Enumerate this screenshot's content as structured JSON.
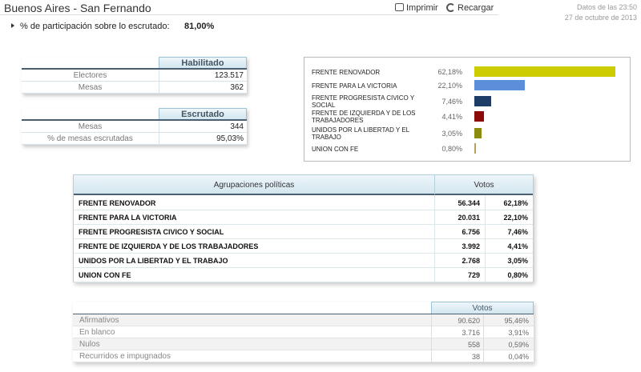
{
  "header": {
    "title": "Buenos Aires - San Fernando",
    "actions": [
      "Imprimir",
      "Recargar"
    ],
    "updated_time": "Datos de las 23:50",
    "updated_date": "27 de octubre de 2013"
  },
  "participation": {
    "label": "% de participación sobre lo escrutado:",
    "value": "81,00%"
  },
  "enabled_table": {
    "header": "Habilitado",
    "rows": [
      [
        "Electores",
        "123.517"
      ],
      [
        "Mesas",
        "362"
      ]
    ]
  },
  "counted_table": {
    "header": "Escrutado",
    "rows": [
      [
        "Mesas",
        "344"
      ],
      [
        "% de mesas escrutadas",
        "95,03%"
      ]
    ]
  },
  "results_chart": {
    "bars": [
      {
        "name": "FRENTE RENOVADOR",
        "value": 62.18,
        "value_label": "62,18%",
        "color": "#cccc00"
      },
      {
        "name": "FRENTE PARA LA VICTORIA",
        "value": 22.1,
        "value_label": "22,10%",
        "color": "#5b8fd9"
      },
      {
        "name": "FRENTE PROGRESISTA CIVICO Y SOCIAL",
        "value": 7.46,
        "value_label": "7,46%",
        "color": "#1d3c66"
      },
      {
        "name": "FRENTE DE IZQUIERDA Y DE LOS TRABAJADORES",
        "value": 4.41,
        "value_label": "4,41%",
        "color": "#8b0a0a"
      },
      {
        "name": "UNIDOS POR LA LIBERTAD Y EL TRABAJO",
        "value": 3.05,
        "value_label": "3,05%",
        "color": "#8b8b10"
      },
      {
        "name": "UNION CON FE",
        "value": 0.8,
        "value_label": "0,80%",
        "color": "#b8a060"
      }
    ]
  },
  "results_table": {
    "headers": [
      "Agrupaciones políticas",
      "Votos"
    ],
    "rows": [
      [
        "FRENTE RENOVADOR",
        "56.344",
        "62,18%"
      ],
      [
        "FRENTE PARA LA VICTORIA",
        "20.031",
        "22,10%"
      ],
      [
        "FRENTE PROGRESISTA CIVICO Y SOCIAL",
        "6.756",
        "7,46%"
      ],
      [
        "FRENTE DE IZQUIERDA Y DE LOS TRABAJADORES",
        "3.992",
        "4,41%"
      ],
      [
        "UNIDOS POR LA LIBERTAD Y EL TRABAJO",
        "2.768",
        "3,05%"
      ],
      [
        "UNION CON FE",
        "729",
        "0,80%"
      ]
    ]
  },
  "votes_table": {
    "header": "Votos",
    "rows": [
      [
        "Afirmativos",
        "90.620",
        "95,46%"
      ],
      [
        "En blanco",
        "3.716",
        "3,91%"
      ],
      [
        "Nulos",
        "558",
        "0,59%"
      ],
      [
        "Recurridos e impugnados",
        "38",
        "0,04%"
      ]
    ]
  }
}
